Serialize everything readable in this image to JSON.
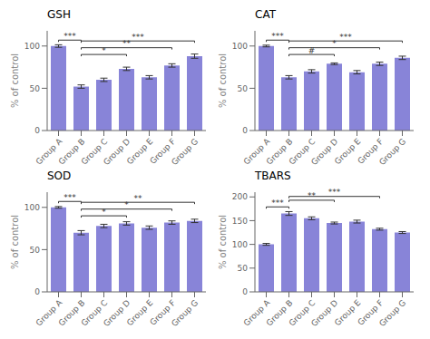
{
  "chart_data": [
    {
      "type": "bar",
      "title": "GSH",
      "categories": [
        "Group A",
        "Group B",
        "Group C",
        "Group D",
        "Group E",
        "Group F",
        "Group G"
      ],
      "values": [
        100,
        52,
        60,
        73,
        63,
        77,
        88
      ],
      "errors": [
        1.5,
        2,
        2,
        2,
        2,
        2,
        2.5
      ],
      "ylabel": "% of control",
      "ylim": [
        0,
        118
      ],
      "yticks": [
        0,
        50,
        100
      ],
      "grid": false,
      "color": "#8884d8",
      "annotations": [
        {
          "from": "Group A",
          "to": "Group B",
          "label": "***",
          "y": 107
        },
        {
          "from": "Group B",
          "to": "Group D",
          "label": "*",
          "y": 90
        },
        {
          "from": "Group B",
          "to": "Group F",
          "label": "**",
          "y": 98
        },
        {
          "from": "Group B",
          "to": "Group G",
          "label": "***",
          "y": 106
        }
      ]
    },
    {
      "type": "bar",
      "title": "CAT",
      "categories": [
        "Group A",
        "Group B",
        "Group C",
        "Group D",
        "Group E",
        "Group F",
        "Group G"
      ],
      "values": [
        100,
        63,
        70,
        79,
        69,
        79,
        86
      ],
      "errors": [
        1,
        2,
        2,
        1,
        2,
        2,
        2
      ],
      "ylabel": "% of control",
      "ylim": [
        0,
        118
      ],
      "yticks": [
        0,
        50,
        100
      ],
      "grid": false,
      "color": "#8884d8",
      "annotations": [
        {
          "from": "Group A",
          "to": "Group B",
          "label": "***",
          "y": 107
        },
        {
          "from": "Group B",
          "to": "Group D",
          "label": "#",
          "y": 90
        },
        {
          "from": "Group B",
          "to": "Group F",
          "label": "*",
          "y": 98
        },
        {
          "from": "Group B",
          "to": "Group G",
          "label": "***",
          "y": 106
        }
      ]
    },
    {
      "type": "bar",
      "title": "SOD",
      "categories": [
        "Group A",
        "Group B",
        "Group C",
        "Group D",
        "Group E",
        "Group F",
        "Group G"
      ],
      "values": [
        100,
        70,
        78,
        81,
        76,
        82,
        84
      ],
      "errors": [
        1,
        2.5,
        2,
        2,
        2,
        2,
        2
      ],
      "ylabel": "% of control",
      "ylim": [
        0,
        118
      ],
      "yticks": [
        0,
        50,
        100
      ],
      "grid": false,
      "color": "#8884d8",
      "annotations": [
        {
          "from": "Group A",
          "to": "Group B",
          "label": "***",
          "y": 107
        },
        {
          "from": "Group B",
          "to": "Group D",
          "label": "*",
          "y": 90
        },
        {
          "from": "Group B",
          "to": "Group F",
          "label": "*",
          "y": 98
        },
        {
          "from": "Group B",
          "to": "Group G",
          "label": "**",
          "y": 106
        }
      ]
    },
    {
      "type": "bar",
      "title": "TBARS",
      "categories": [
        "Group A",
        "Group B",
        "Group C",
        "Group D",
        "Group E",
        "Group F",
        "Group G"
      ],
      "values": [
        100,
        165,
        155,
        145,
        148,
        132,
        125
      ],
      "errors": [
        2,
        4,
        3,
        2,
        3,
        2,
        2
      ],
      "ylabel": "% of control",
      "ylim": [
        0,
        210
      ],
      "yticks": [
        0,
        50,
        100,
        150,
        200
      ],
      "grid": false,
      "color": "#8884d8",
      "annotations": [
        {
          "from": "Group A",
          "to": "Group B",
          "label": "***",
          "y": 179
        },
        {
          "from": "Group B",
          "to": "Group D",
          "label": "**",
          "y": 193
        },
        {
          "from": "Group B",
          "to": "Group F",
          "label": "***",
          "y": 201
        }
      ]
    }
  ]
}
